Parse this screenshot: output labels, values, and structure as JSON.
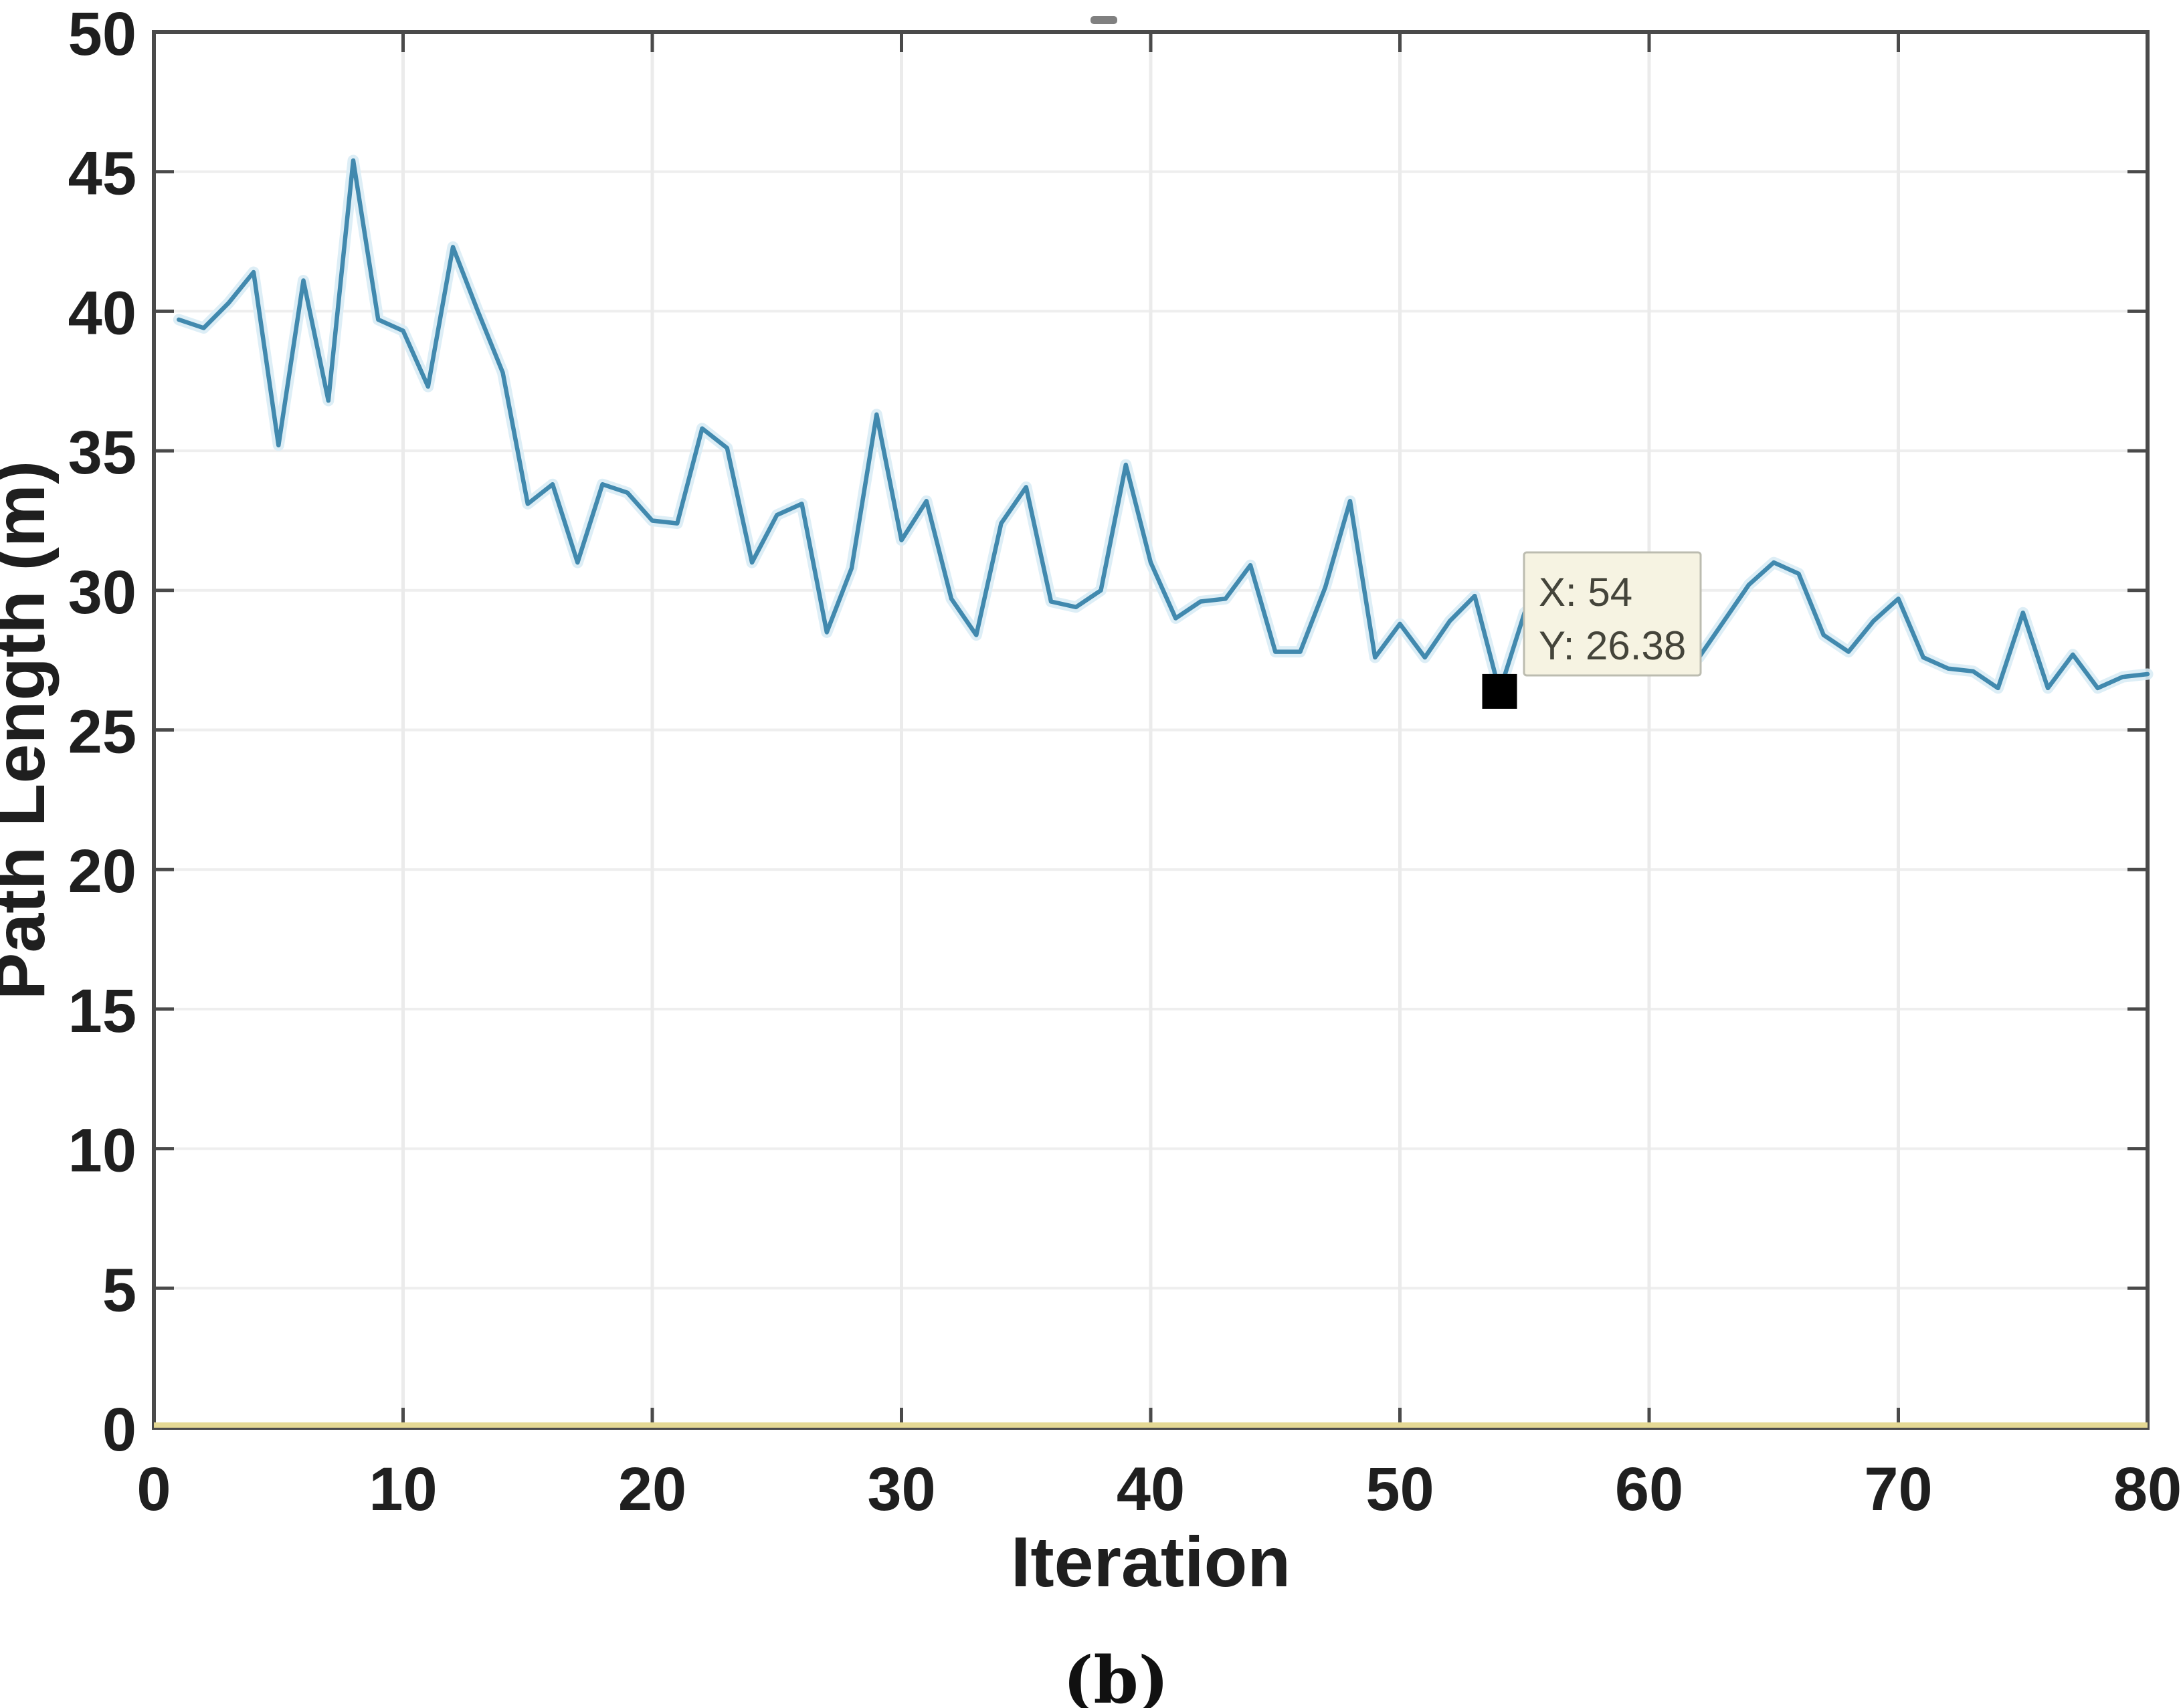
{
  "figure": {
    "ylabel": "Path Length (m)",
    "xlabel": "Iteration",
    "caption": "(b)"
  },
  "tooltip": {
    "line1": "X: 54",
    "line2": "Y: 26.38"
  },
  "colors": {
    "series_line": "#4189ae",
    "series_halo": "#d9ecf5",
    "baseline_yellow": "#e5d994",
    "axis": "#4a4a4a",
    "grid": "#ebebeb",
    "tooltip_bg": "#f6f3e2",
    "tooltip_border": "#bcbcb0",
    "marker": "#000000",
    "label_text": "#1f1f1f"
  },
  "chart_data": {
    "type": "line",
    "title": "",
    "xlabel": "Iteration",
    "ylabel": "Path Length (m)",
    "xlim": [
      0,
      80
    ],
    "ylim": [
      0,
      50
    ],
    "xticks": [
      0,
      10,
      20,
      30,
      40,
      50,
      60,
      70,
      80
    ],
    "yticks": [
      0,
      5,
      10,
      15,
      20,
      25,
      30,
      35,
      40,
      45,
      50
    ],
    "grid": true,
    "legend": "none",
    "datatip": {
      "x": 54,
      "y": 26.38
    },
    "series": [
      {
        "name": "path-length",
        "x": [
          1,
          2,
          3,
          4,
          5,
          6,
          7,
          8,
          9,
          10,
          11,
          12,
          13,
          14,
          15,
          16,
          17,
          18,
          19,
          20,
          21,
          22,
          23,
          24,
          25,
          26,
          27,
          28,
          29,
          30,
          31,
          32,
          33,
          34,
          35,
          36,
          37,
          38,
          39,
          40,
          41,
          42,
          43,
          44,
          45,
          46,
          47,
          48,
          49,
          50,
          51,
          52,
          53,
          54,
          55,
          56,
          57,
          58,
          59,
          60,
          61,
          62,
          63,
          64,
          65,
          66,
          67,
          68,
          69,
          70,
          71,
          72,
          73,
          74,
          75,
          76,
          77,
          78,
          79,
          80
        ],
        "values": [
          39.7,
          39.4,
          40.3,
          41.4,
          35.2,
          41.1,
          36.8,
          45.4,
          39.7,
          39.3,
          37.3,
          42.3,
          40.0,
          37.8,
          33.1,
          33.8,
          31.0,
          33.8,
          33.5,
          32.5,
          32.4,
          35.8,
          35.1,
          31.0,
          32.7,
          33.1,
          28.5,
          30.8,
          36.3,
          31.8,
          33.2,
          29.7,
          28.4,
          32.4,
          33.7,
          29.6,
          29.4,
          30.0,
          34.5,
          31.0,
          29.0,
          29.6,
          29.7,
          30.9,
          27.8,
          27.8,
          30.1,
          33.2,
          27.6,
          28.8,
          27.6,
          28.9,
          29.8,
          26.38,
          29.2,
          29.9,
          28.6,
          29.4,
          28.1,
          27.8,
          27.5,
          27.6,
          28.9,
          30.2,
          31.0,
          30.6,
          28.4,
          27.8,
          28.9,
          29.7,
          27.6,
          27.2,
          27.1,
          26.5,
          29.2,
          26.5,
          27.7,
          26.5,
          26.9,
          27.0
        ]
      },
      {
        "name": "baseline",
        "x": [
          0,
          80
        ],
        "values": [
          0.1,
          0.1
        ]
      }
    ]
  }
}
